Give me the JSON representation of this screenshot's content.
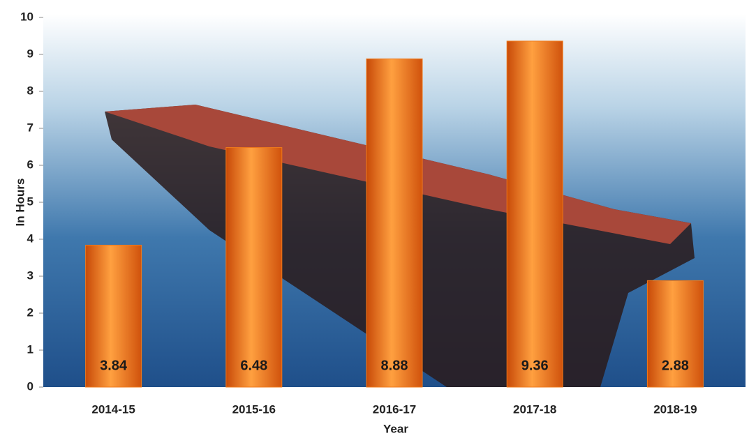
{
  "chart_data": {
    "type": "bar",
    "x_label": "Year",
    "y_label": "In Hours",
    "categories": [
      "2014-15",
      "2015-16",
      "2016-17",
      "2017-18",
      "2018-19"
    ],
    "values": [
      3.84,
      6.48,
      8.88,
      9.36,
      2.88
    ],
    "color": "#f07a1a",
    "ylim": [
      0,
      10
    ],
    "yticks": [
      0,
      1,
      2,
      3,
      4,
      5,
      6,
      7,
      8,
      9,
      10
    ]
  }
}
